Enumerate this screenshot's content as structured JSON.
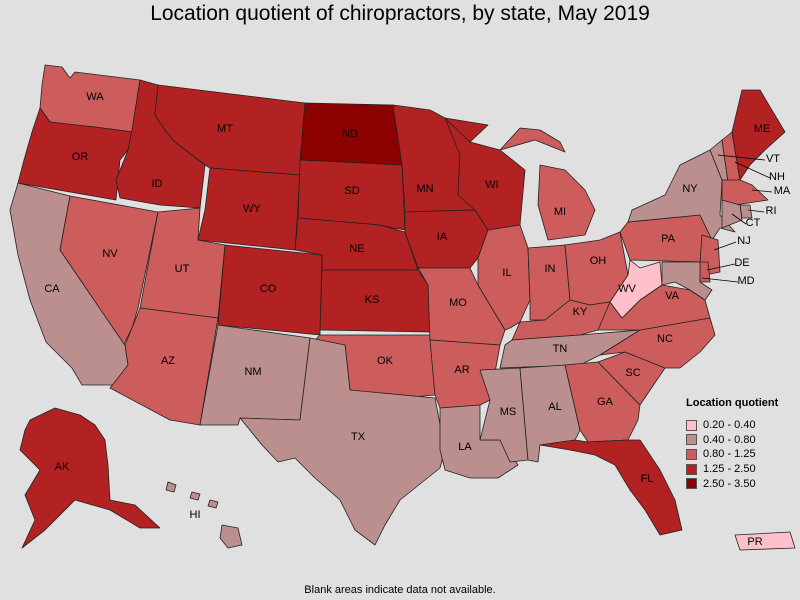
{
  "title": "Location quotient of chiropractors, by state, May 2019",
  "footnote": "Blank areas indicate data not available.",
  "legend": {
    "title": "Location quotient",
    "bins": [
      {
        "label": "0.20 - 0.40",
        "color": "#ffc0cb"
      },
      {
        "label": "0.40 - 0.80",
        "color": "#bc8f8f"
      },
      {
        "label": "0.80 - 1.25",
        "color": "#cd5c5c"
      },
      {
        "label": "1.25 - 2.50",
        "color": "#b22222"
      },
      {
        "label": "2.50 - 3.50",
        "color": "#8b0000"
      }
    ]
  },
  "states": [
    {
      "abbr": "WA",
      "bin": 2
    },
    {
      "abbr": "OR",
      "bin": 3
    },
    {
      "abbr": "CA",
      "bin": 1
    },
    {
      "abbr": "NV",
      "bin": 2
    },
    {
      "abbr": "ID",
      "bin": 3
    },
    {
      "abbr": "MT",
      "bin": 3
    },
    {
      "abbr": "WY",
      "bin": 3
    },
    {
      "abbr": "UT",
      "bin": 2
    },
    {
      "abbr": "AZ",
      "bin": 2
    },
    {
      "abbr": "CO",
      "bin": 3
    },
    {
      "abbr": "NM",
      "bin": 1
    },
    {
      "abbr": "ND",
      "bin": 4
    },
    {
      "abbr": "SD",
      "bin": 3
    },
    {
      "abbr": "NE",
      "bin": 3
    },
    {
      "abbr": "KS",
      "bin": 3
    },
    {
      "abbr": "OK",
      "bin": 2
    },
    {
      "abbr": "TX",
      "bin": 1
    },
    {
      "abbr": "MN",
      "bin": 3
    },
    {
      "abbr": "IA",
      "bin": 3
    },
    {
      "abbr": "MO",
      "bin": 2
    },
    {
      "abbr": "AR",
      "bin": 2
    },
    {
      "abbr": "LA",
      "bin": 1
    },
    {
      "abbr": "WI",
      "bin": 3
    },
    {
      "abbr": "IL",
      "bin": 2
    },
    {
      "abbr": "MI",
      "bin": 2
    },
    {
      "abbr": "IN",
      "bin": 2
    },
    {
      "abbr": "OH",
      "bin": 2
    },
    {
      "abbr": "KY",
      "bin": 2
    },
    {
      "abbr": "TN",
      "bin": 1
    },
    {
      "abbr": "MS",
      "bin": 1
    },
    {
      "abbr": "AL",
      "bin": 1
    },
    {
      "abbr": "GA",
      "bin": 2
    },
    {
      "abbr": "FL",
      "bin": 3
    },
    {
      "abbr": "SC",
      "bin": 2
    },
    {
      "abbr": "NC",
      "bin": 2
    },
    {
      "abbr": "VA",
      "bin": 2
    },
    {
      "abbr": "WV",
      "bin": 0
    },
    {
      "abbr": "PA",
      "bin": 2
    },
    {
      "abbr": "NY",
      "bin": 1
    },
    {
      "abbr": "VT",
      "bin": 1
    },
    {
      "abbr": "NH",
      "bin": 2
    },
    {
      "abbr": "ME",
      "bin": 3
    },
    {
      "abbr": "MA",
      "bin": 2
    },
    {
      "abbr": "RI",
      "bin": 1
    },
    {
      "abbr": "CT",
      "bin": 1
    },
    {
      "abbr": "NJ",
      "bin": 2
    },
    {
      "abbr": "DE",
      "bin": 2
    },
    {
      "abbr": "MD",
      "bin": 1
    },
    {
      "abbr": "AK",
      "bin": 3
    },
    {
      "abbr": "HI",
      "bin": 1
    },
    {
      "abbr": "PR",
      "bin": 0
    }
  ]
}
